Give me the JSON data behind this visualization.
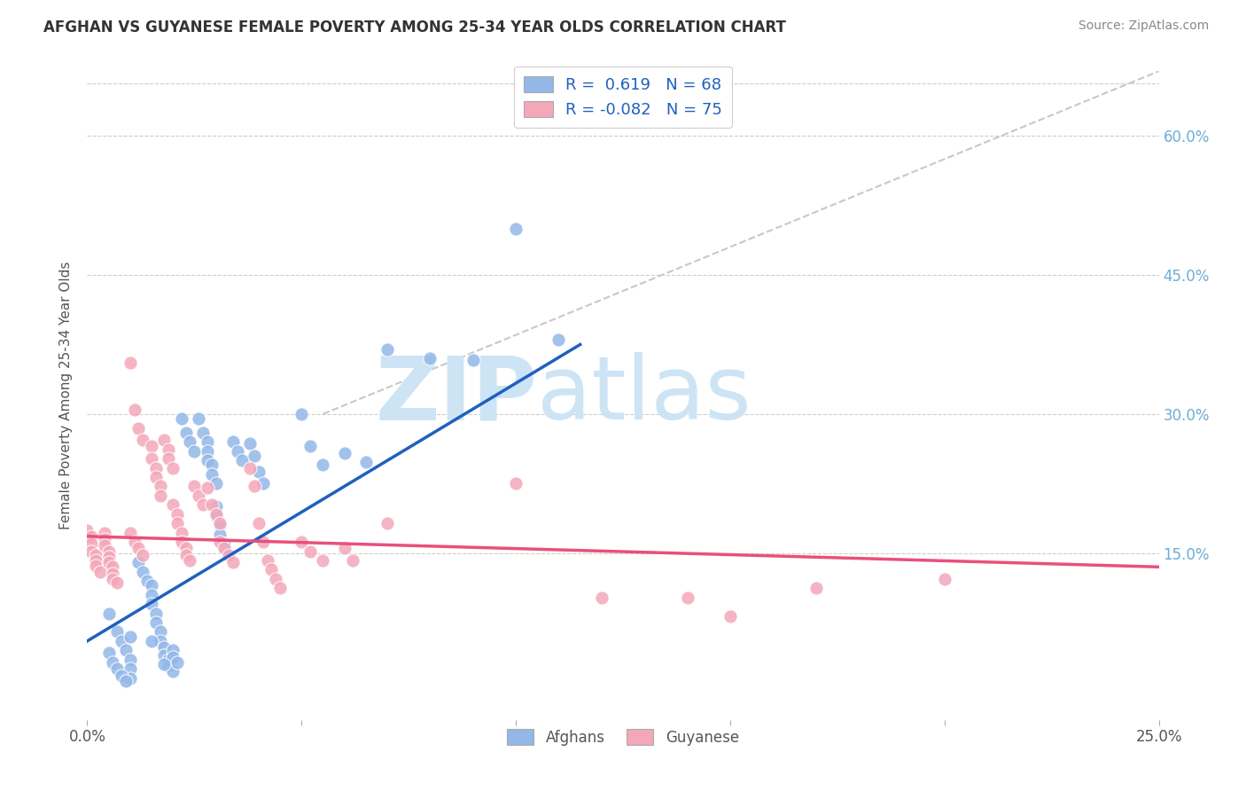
{
  "title": "AFGHAN VS GUYANESE FEMALE POVERTY AMONG 25-34 YEAR OLDS CORRELATION CHART",
  "source": "Source: ZipAtlas.com",
  "ylabel": "Female Poverty Among 25-34 Year Olds",
  "ytick_vals": [
    0.6,
    0.45,
    0.3,
    0.15
  ],
  "ytick_labels": [
    "60.0%",
    "45.0%",
    "30.0%",
    "15.0%"
  ],
  "xtick_vals": [
    0.0,
    0.25
  ],
  "xtick_labels": [
    "0.0%",
    "25.0%"
  ],
  "xlim": [
    0.0,
    0.25
  ],
  "ylim": [
    -0.03,
    0.67
  ],
  "afghan_R": 0.619,
  "afghan_N": 68,
  "guyanese_R": -0.082,
  "guyanese_N": 75,
  "afghan_color": "#93b8e8",
  "guyanese_color": "#f4a7b9",
  "afghan_line_color": "#2060c0",
  "guyanese_line_color": "#e8507a",
  "diagonal_color": "#c8c8c8",
  "background_color": "#ffffff",
  "watermark_zip": "ZIP",
  "watermark_atlas": "atlas",
  "watermark_color": "#cde4f5",
  "legend_label_color": "#2060c0",
  "afghan_scatter": [
    [
      0.005,
      0.085
    ],
    [
      0.007,
      0.065
    ],
    [
      0.008,
      0.055
    ],
    [
      0.009,
      0.045
    ],
    [
      0.01,
      0.035
    ],
    [
      0.01,
      0.025
    ],
    [
      0.01,
      0.015
    ],
    [
      0.012,
      0.14
    ],
    [
      0.013,
      0.13
    ],
    [
      0.014,
      0.12
    ],
    [
      0.015,
      0.115
    ],
    [
      0.015,
      0.105
    ],
    [
      0.015,
      0.095
    ],
    [
      0.016,
      0.085
    ],
    [
      0.016,
      0.075
    ],
    [
      0.017,
      0.065
    ],
    [
      0.017,
      0.055
    ],
    [
      0.018,
      0.048
    ],
    [
      0.018,
      0.04
    ],
    [
      0.019,
      0.035
    ],
    [
      0.019,
      0.028
    ],
    [
      0.02,
      0.022
    ],
    [
      0.02,
      0.045
    ],
    [
      0.02,
      0.038
    ],
    [
      0.021,
      0.032
    ],
    [
      0.022,
      0.295
    ],
    [
      0.023,
      0.28
    ],
    [
      0.024,
      0.27
    ],
    [
      0.025,
      0.26
    ],
    [
      0.026,
      0.295
    ],
    [
      0.027,
      0.28
    ],
    [
      0.028,
      0.27
    ],
    [
      0.028,
      0.26
    ],
    [
      0.028,
      0.25
    ],
    [
      0.029,
      0.245
    ],
    [
      0.029,
      0.235
    ],
    [
      0.03,
      0.225
    ],
    [
      0.03,
      0.2
    ],
    [
      0.03,
      0.19
    ],
    [
      0.031,
      0.18
    ],
    [
      0.031,
      0.17
    ],
    [
      0.032,
      0.16
    ],
    [
      0.032,
      0.155
    ],
    [
      0.034,
      0.27
    ],
    [
      0.035,
      0.26
    ],
    [
      0.036,
      0.25
    ],
    [
      0.038,
      0.268
    ],
    [
      0.039,
      0.255
    ],
    [
      0.04,
      0.238
    ],
    [
      0.041,
      0.225
    ],
    [
      0.05,
      0.3
    ],
    [
      0.052,
      0.265
    ],
    [
      0.055,
      0.245
    ],
    [
      0.06,
      0.258
    ],
    [
      0.065,
      0.248
    ],
    [
      0.07,
      0.37
    ],
    [
      0.08,
      0.36
    ],
    [
      0.09,
      0.358
    ],
    [
      0.1,
      0.5
    ],
    [
      0.11,
      0.38
    ],
    [
      0.005,
      0.042
    ],
    [
      0.006,
      0.032
    ],
    [
      0.007,
      0.025
    ],
    [
      0.008,
      0.018
    ],
    [
      0.009,
      0.012
    ],
    [
      0.01,
      0.06
    ],
    [
      0.015,
      0.055
    ],
    [
      0.018,
      0.03
    ]
  ],
  "guyanese_scatter": [
    [
      0.0,
      0.175
    ],
    [
      0.001,
      0.168
    ],
    [
      0.001,
      0.16
    ],
    [
      0.001,
      0.152
    ],
    [
      0.002,
      0.148
    ],
    [
      0.002,
      0.142
    ],
    [
      0.002,
      0.136
    ],
    [
      0.003,
      0.13
    ],
    [
      0.004,
      0.172
    ],
    [
      0.004,
      0.165
    ],
    [
      0.004,
      0.158
    ],
    [
      0.005,
      0.152
    ],
    [
      0.005,
      0.146
    ],
    [
      0.005,
      0.14
    ],
    [
      0.006,
      0.135
    ],
    [
      0.006,
      0.128
    ],
    [
      0.006,
      0.122
    ],
    [
      0.007,
      0.118
    ],
    [
      0.01,
      0.355
    ],
    [
      0.011,
      0.305
    ],
    [
      0.012,
      0.285
    ],
    [
      0.013,
      0.272
    ],
    [
      0.01,
      0.172
    ],
    [
      0.011,
      0.162
    ],
    [
      0.012,
      0.155
    ],
    [
      0.013,
      0.148
    ],
    [
      0.015,
      0.265
    ],
    [
      0.015,
      0.252
    ],
    [
      0.016,
      0.242
    ],
    [
      0.016,
      0.232
    ],
    [
      0.017,
      0.222
    ],
    [
      0.017,
      0.212
    ],
    [
      0.018,
      0.272
    ],
    [
      0.019,
      0.262
    ],
    [
      0.019,
      0.252
    ],
    [
      0.02,
      0.242
    ],
    [
      0.02,
      0.202
    ],
    [
      0.021,
      0.192
    ],
    [
      0.021,
      0.182
    ],
    [
      0.022,
      0.172
    ],
    [
      0.022,
      0.162
    ],
    [
      0.023,
      0.155
    ],
    [
      0.023,
      0.148
    ],
    [
      0.024,
      0.142
    ],
    [
      0.025,
      0.222
    ],
    [
      0.026,
      0.212
    ],
    [
      0.027,
      0.202
    ],
    [
      0.028,
      0.22
    ],
    [
      0.029,
      0.202
    ],
    [
      0.03,
      0.192
    ],
    [
      0.031,
      0.182
    ],
    [
      0.031,
      0.162
    ],
    [
      0.032,
      0.155
    ],
    [
      0.033,
      0.148
    ],
    [
      0.034,
      0.14
    ],
    [
      0.038,
      0.242
    ],
    [
      0.039,
      0.222
    ],
    [
      0.04,
      0.182
    ],
    [
      0.041,
      0.162
    ],
    [
      0.042,
      0.142
    ],
    [
      0.043,
      0.132
    ],
    [
      0.044,
      0.122
    ],
    [
      0.045,
      0.112
    ],
    [
      0.05,
      0.162
    ],
    [
      0.052,
      0.152
    ],
    [
      0.055,
      0.142
    ],
    [
      0.06,
      0.155
    ],
    [
      0.062,
      0.142
    ],
    [
      0.07,
      0.182
    ],
    [
      0.1,
      0.225
    ],
    [
      0.12,
      0.102
    ],
    [
      0.14,
      0.102
    ],
    [
      0.15,
      0.082
    ],
    [
      0.17,
      0.112
    ],
    [
      0.2,
      0.122
    ]
  ],
  "afghan_line": {
    "x0": 0.0,
    "y0": 0.055,
    "x1": 0.115,
    "y1": 0.375
  },
  "guyanese_line": {
    "x0": 0.0,
    "y0": 0.168,
    "x1": 0.25,
    "y1": 0.135
  },
  "diagonal_line": {
    "x0": 0.055,
    "y0": 0.3,
    "x1": 0.25,
    "y1": 0.67
  }
}
